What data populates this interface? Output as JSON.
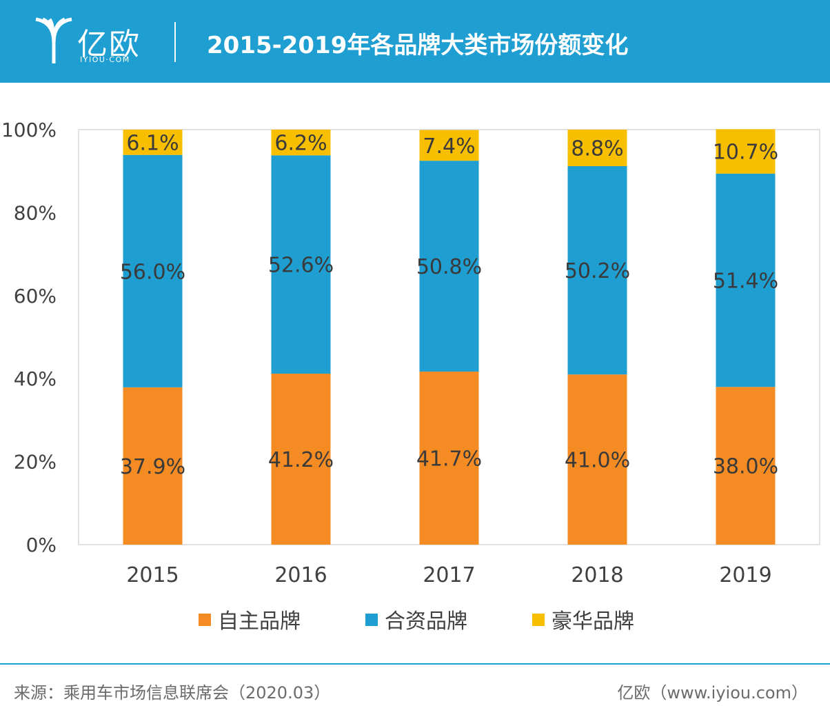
{
  "header": {
    "logo_text": "亿欧",
    "logo_sub": "IYIOU·COM",
    "title": "2015-2019年各品牌大类市场份额变化"
  },
  "chart_data": {
    "type": "bar",
    "stacked": true,
    "categories": [
      "2015",
      "2016",
      "2017",
      "2018",
      "2019"
    ],
    "series": [
      {
        "name": "自主品牌",
        "values": [
          37.9,
          41.2,
          41.7,
          41.0,
          38.0
        ],
        "labels": [
          "37.9%",
          "41.2%",
          "41.7%",
          "41.0%",
          "38.0%"
        ],
        "color": "#f58b23"
      },
      {
        "name": "合资品牌",
        "values": [
          56.0,
          52.6,
          50.8,
          50.2,
          51.4
        ],
        "labels": [
          "56.0%",
          "52.6%",
          "50.8%",
          "50.2%",
          "51.4%"
        ],
        "color": "#1f9ed1"
      },
      {
        "name": "豪华品牌",
        "values": [
          6.1,
          6.2,
          7.4,
          8.8,
          10.7
        ],
        "labels": [
          "6.1%",
          "6.2%",
          "7.4%",
          "8.8%",
          "10.7%"
        ],
        "color": "#f7bf00"
      }
    ],
    "ylim": [
      0,
      100
    ],
    "yticks": [
      0,
      20,
      40,
      60,
      80,
      100
    ],
    "ytick_labels": [
      "0%",
      "20%",
      "40%",
      "60%",
      "80%",
      "100%"
    ],
    "legend_position": "bottom"
  },
  "footer": {
    "source": "来源：乘用车市场信息联席会（2020.03）",
    "credit": "亿欧（www.iyiou.com）"
  },
  "colors": {
    "brand": "#1f9ed1",
    "axis": "#d9d9d9",
    "label_text": "#3a3a3a"
  }
}
